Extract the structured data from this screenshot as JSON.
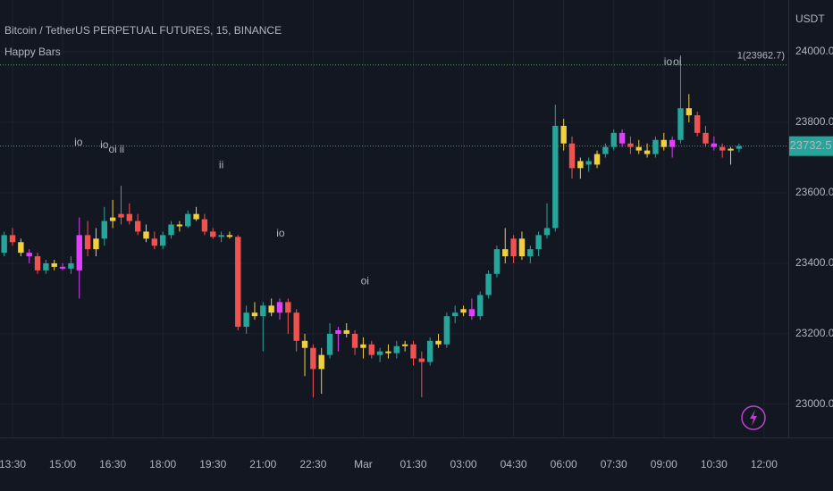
{
  "chart_data": {
    "type": "candlestick",
    "title": "Bitcoin / TetherUS PERPETUAL FUTURES, 15, BINANCE",
    "indicator": "Happy Bars",
    "y_axis_label": "USDT",
    "ylim": [
      22906,
      24147
    ],
    "xlim": [
      -0.5,
      93.9
    ],
    "yticks": [
      {
        "value": 23000,
        "label": "23000.0"
      },
      {
        "value": 23200,
        "label": "23200.0"
      },
      {
        "value": 23400,
        "label": "23400.0"
      },
      {
        "value": 23600,
        "label": "23600.0"
      },
      {
        "value": 23800,
        "label": "23800.0"
      },
      {
        "value": 24000,
        "label": "24000.0"
      }
    ],
    "xticks": [
      {
        "value": 1,
        "label": "13:30"
      },
      {
        "value": 7,
        "label": "15:00"
      },
      {
        "value": 13,
        "label": "16:30"
      },
      {
        "value": 19,
        "label": "18:00"
      },
      {
        "value": 25,
        "label": "19:30"
      },
      {
        "value": 31,
        "label": "21:00"
      },
      {
        "value": 37,
        "label": "22:30"
      },
      {
        "value": 43,
        "label": "Mar"
      },
      {
        "value": 49,
        "label": "01:30"
      },
      {
        "value": 55,
        "label": "03:00"
      },
      {
        "value": 61,
        "label": "04:30"
      },
      {
        "value": 67,
        "label": "06:00"
      },
      {
        "value": 73,
        "label": "07:30"
      },
      {
        "value": 79,
        "label": "09:00"
      },
      {
        "value": 85,
        "label": "10:30"
      },
      {
        "value": 91,
        "label": "12:00"
      }
    ],
    "grid": true,
    "open": [
      23430,
      23480,
      23460,
      23430,
      23420,
      23380,
      23400,
      23390,
      23385,
      23380,
      23480,
      23440,
      23470,
      23520,
      23530,
      23540,
      23520,
      23490,
      23470,
      23450,
      23480,
      23510,
      23505,
      23540,
      23525,
      23490,
      23475,
      23480,
      23475,
      23220,
      23260,
      23250,
      23280,
      23260,
      23290,
      23260,
      23180,
      23160,
      23100,
      23140,
      23200,
      23210,
      23200,
      23160,
      23170,
      23140,
      23150,
      23145,
      23165,
      23170,
      23130,
      23120,
      23180,
      23170,
      23250,
      23260,
      23270,
      23250,
      23310,
      23370,
      23440,
      23420,
      23470,
      23420,
      23440,
      23480,
      23500,
      23790,
      23740,
      23670,
      23690,
      23680,
      23710,
      23730,
      23770,
      23740,
      23730,
      23720,
      23710,
      23750,
      23730,
      23750,
      23840,
      23820,
      23770,
      23740,
      23730,
      23720,
      23725
    ],
    "high": [
      23490,
      23500,
      23470,
      23440,
      23430,
      23410,
      23410,
      23400,
      23420,
      23530,
      23520,
      23500,
      23560,
      23580,
      23620,
      23570,
      23540,
      23510,
      23490,
      23490,
      23520,
      23520,
      23550,
      23560,
      23540,
      23500,
      23490,
      23490,
      23480,
      23280,
      23290,
      23290,
      23300,
      23300,
      23300,
      23270,
      23200,
      23170,
      23160,
      23230,
      23220,
      23230,
      23210,
      23190,
      23180,
      23160,
      23170,
      23180,
      23180,
      23180,
      23150,
      23190,
      23200,
      23260,
      23280,
      23280,
      23300,
      23320,
      23380,
      23450,
      23500,
      23480,
      23490,
      23450,
      23490,
      23570,
      23850,
      23810,
      23760,
      23700,
      23700,
      23720,
      23740,
      23780,
      23780,
      23760,
      23750,
      23740,
      23760,
      23770,
      23760,
      23990,
      23880,
      23830,
      23790,
      23760,
      23740,
      23730,
      23740
    ],
    "low": [
      23420,
      23450,
      23420,
      23400,
      23370,
      23370,
      23380,
      23380,
      23370,
      23300,
      23420,
      23420,
      23450,
      23500,
      23510,
      23510,
      23480,
      23460,
      23440,
      23440,
      23470,
      23490,
      23500,
      23520,
      23480,
      23470,
      23460,
      23470,
      23210,
      23200,
      23240,
      23150,
      23250,
      23240,
      23200,
      23150,
      23080,
      23020,
      23030,
      23130,
      23150,
      23190,
      23140,
      23130,
      23130,
      23120,
      23130,
      23130,
      23150,
      23110,
      23020,
      23110,
      23160,
      23160,
      23230,
      23250,
      23240,
      23240,
      23300,
      23360,
      23400,
      23400,
      23410,
      23400,
      23420,
      23470,
      23490,
      23720,
      23640,
      23640,
      23660,
      23670,
      23700,
      23720,
      23730,
      23710,
      23710,
      23700,
      23700,
      23720,
      23700,
      23740,
      23800,
      23760,
      23730,
      23720,
      23700,
      23680,
      23715
    ],
    "close": [
      23480,
      23460,
      23430,
      23420,
      23380,
      23400,
      23390,
      23385,
      23400,
      23480,
      23440,
      23470,
      23520,
      23530,
      23540,
      23520,
      23490,
      23470,
      23450,
      23480,
      23510,
      23505,
      23540,
      23525,
      23490,
      23475,
      23480,
      23475,
      23220,
      23260,
      23250,
      23280,
      23260,
      23290,
      23260,
      23180,
      23160,
      23100,
      23140,
      23200,
      23210,
      23200,
      23160,
      23170,
      23140,
      23150,
      23145,
      23165,
      23170,
      23130,
      23120,
      23180,
      23170,
      23250,
      23260,
      23270,
      23250,
      23310,
      23370,
      23440,
      23420,
      23470,
      23420,
      23440,
      23480,
      23500,
      23790,
      23740,
      23670,
      23690,
      23680,
      23710,
      23730,
      23770,
      23740,
      23730,
      23720,
      23710,
      23750,
      23730,
      23750,
      23840,
      23820,
      23770,
      23740,
      23730,
      23720,
      23725,
      23732.5
    ],
    "colors": [
      "#26a69a",
      "#ef5350",
      "#f0d040",
      "#e040fb",
      "#ef5350",
      "#26a69a",
      "#f0d040",
      "#e040fb",
      "#26a69a",
      "#e040fb",
      "#ef5350",
      "#f0d040",
      "#26a69a",
      "#f0d040",
      "#ef5350",
      "#ef5350",
      "#ef5350",
      "#f0d040",
      "#ef5350",
      "#26a69a",
      "#26a69a",
      "#f0d040",
      "#26a69a",
      "#f0d040",
      "#ef5350",
      "#ef5350",
      "#26a69a",
      "#f0d040",
      "#ef5350",
      "#26a69a",
      "#f0d040",
      "#26a69a",
      "#f0d040",
      "#e040fb",
      "#ef5350",
      "#ef5350",
      "#f0d040",
      "#ef5350",
      "#f0d040",
      "#26a69a",
      "#e040fb",
      "#f0d040",
      "#ef5350",
      "#f0d040",
      "#ef5350",
      "#26a69a",
      "#f0d040",
      "#26a69a",
      "#f0d040",
      "#ef5350",
      "#ef5350",
      "#26a69a",
      "#f0d040",
      "#26a69a",
      "#26a69a",
      "#f0d040",
      "#e040fb",
      "#26a69a",
      "#26a69a",
      "#26a69a",
      "#f0d040",
      "#ef5350",
      "#f0d040",
      "#26a69a",
      "#26a69a",
      "#26a69a",
      "#26a69a",
      "#f0d040",
      "#ef5350",
      "#f0d040",
      "#26a69a",
      "#f0d040",
      "#26a69a",
      "#26a69a",
      "#e040fb",
      "#ef5350",
      "#f0d040",
      "#f0d040",
      "#26a69a",
      "#f0d040",
      "#e040fb",
      "#26a69a",
      "#f0d040",
      "#ef5350",
      "#ef5350",
      "#e040fb",
      "#ef5350",
      "#f0d040",
      "#26a69a"
    ],
    "last_price": 23732.5,
    "last_price_color": "#26a69a",
    "level": {
      "value": 23962.7,
      "label": "1(23962.7)",
      "color": "#4caf50"
    },
    "annotations": [
      {
        "text": "io",
        "index": 8.9,
        "price": 23742,
        "color": "#8a8e99"
      },
      {
        "text": "io",
        "index": 12.0,
        "price": 23734,
        "color": "#8a8e99"
      },
      {
        "text": "oi",
        "index": 13.0,
        "price": 23722,
        "color": "#f0d040"
      },
      {
        "text": "ii",
        "index": 14.1,
        "price": 23722,
        "color": "#f0d040"
      },
      {
        "text": "ii",
        "index": 26.0,
        "price": 23678,
        "color": "#f0d040"
      },
      {
        "text": "io",
        "index": 33.1,
        "price": 23484,
        "color": "#8a8e99"
      },
      {
        "text": "oi",
        "index": 43.2,
        "price": 23349,
        "color": "#f0d040"
      },
      {
        "text": "io",
        "index": 79.5,
        "price": 23970,
        "color": "#8a8e99"
      },
      {
        "text": "oi",
        "index": 80.6,
        "price": 23970,
        "color": "#f0d040"
      }
    ]
  }
}
